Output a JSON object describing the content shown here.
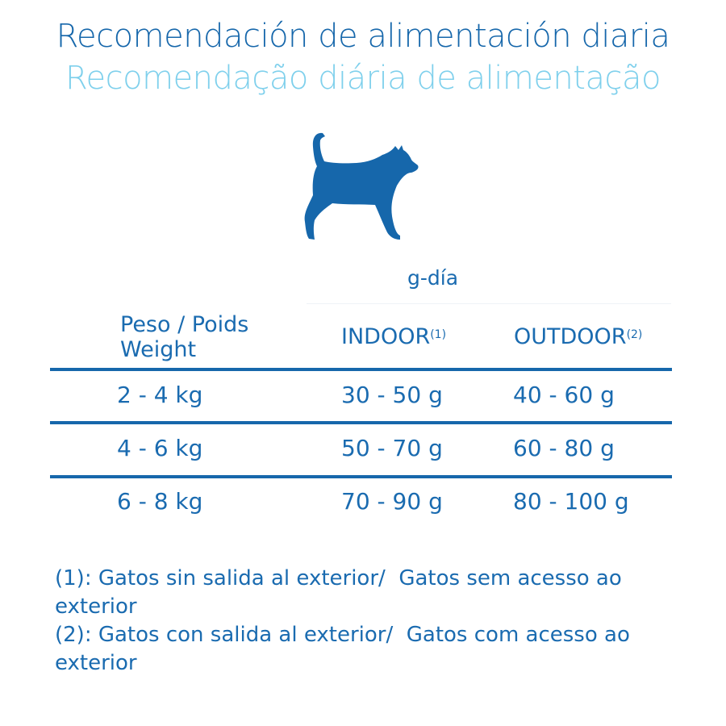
{
  "title": {
    "es": "Recomendación de alimentación diaria",
    "pt": "Recomendação diária de alimentação"
  },
  "icon": "cat-silhouette-icon",
  "colors": {
    "primary": "#1667ab",
    "secondary": "#7fd0ec"
  },
  "table": {
    "unit": "g-día",
    "headers": {
      "weight_line1": "Peso / Poids",
      "weight_line2": "Weight",
      "indoor": "INDOOR",
      "indoor_note": "(1)",
      "outdoor": "OUTDOOR",
      "outdoor_note": "(2)"
    },
    "rows": [
      {
        "weight": "2 - 4 kg",
        "indoor": "30 - 50 g",
        "outdoor": "40 - 60 g"
      },
      {
        "weight": "4 - 6 kg",
        "indoor": "50 - 70 g",
        "outdoor": "60 - 80 g"
      },
      {
        "weight": "6 - 8 kg",
        "indoor": "70 - 90 g",
        "outdoor": "80 - 100 g"
      }
    ]
  },
  "footnotes": [
    "(1): Gatos sin salida al exterior/  Gatos sem acesso ao exterior",
    "(2): Gatos con salida al exterior/  Gatos com acesso ao exterior"
  ]
}
